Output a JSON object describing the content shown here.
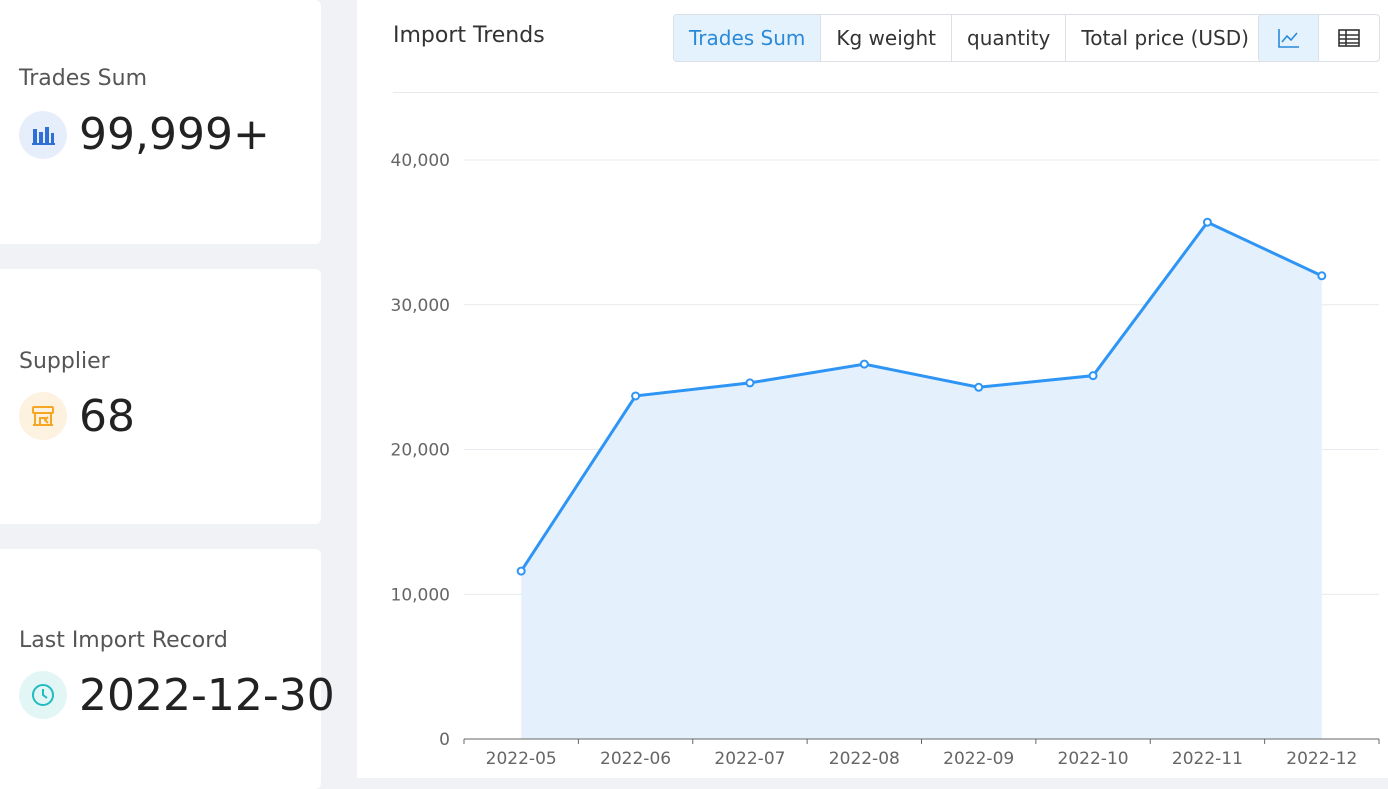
{
  "stats": {
    "trades_sum": {
      "label": "Trades Sum",
      "value": "99,999+",
      "icon": "bar-chart-icon",
      "icon_color": "#2f6fd6"
    },
    "supplier": {
      "label": "Supplier",
      "value": "68",
      "icon": "supplier-store-icon",
      "icon_color": "#f5a623"
    },
    "last_import": {
      "label": "Last Import Record",
      "value": "2022-12-30",
      "icon": "clock-icon",
      "icon_color": "#1fbcc1"
    }
  },
  "panel": {
    "title": "Import Trends",
    "metric_tabs": [
      "Trades Sum",
      "Kg weight",
      "quantity",
      "Total price (USD)"
    ],
    "active_metric": "Trades Sum",
    "view_tabs": [
      {
        "icon": "line-chart-icon",
        "active": true
      },
      {
        "icon": "table-icon",
        "active": false
      }
    ]
  },
  "colors": {
    "accent": "#2f95f5",
    "area_fill": "#e4f1fd",
    "active_tab_bg": "#e4f2fd",
    "active_tab_text": "#2a8ad8"
  },
  "chart_data": {
    "type": "line",
    "area": true,
    "categories": [
      "2022-05",
      "2022-06",
      "2022-07",
      "2022-08",
      "2022-09",
      "2022-10",
      "2022-11",
      "2022-12"
    ],
    "values": [
      11600,
      23700,
      24600,
      25900,
      24300,
      25100,
      35700,
      32000
    ],
    "ylim": [
      0,
      40000
    ],
    "yticks": [
      0,
      10000,
      20000,
      30000,
      40000
    ],
    "ytick_labels": [
      "0",
      "10,000",
      "20,000",
      "30,000",
      "40,000"
    ],
    "grid": true,
    "legend": "none"
  }
}
